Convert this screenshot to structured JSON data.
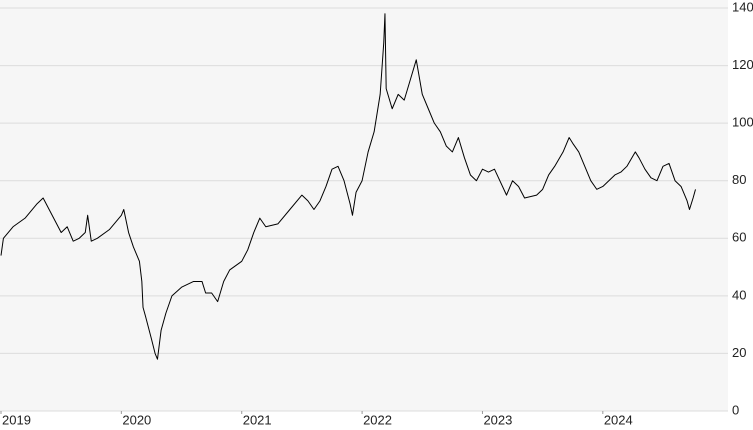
{
  "chart_data": {
    "type": "line",
    "x": [
      2019.0,
      2019.02,
      2019.1,
      2019.2,
      2019.3,
      2019.35,
      2019.4,
      2019.45,
      2019.5,
      2019.55,
      2019.6,
      2019.65,
      2019.7,
      2019.72,
      2019.75,
      2019.8,
      2019.9,
      2020.0,
      2020.02,
      2020.06,
      2020.1,
      2020.15,
      2020.17,
      2020.18,
      2020.2,
      2020.25,
      2020.28,
      2020.3,
      2020.33,
      2020.37,
      2020.42,
      2020.5,
      2020.6,
      2020.67,
      2020.7,
      2020.75,
      2020.8,
      2020.85,
      2020.9,
      2021.0,
      2021.05,
      2021.1,
      2021.15,
      2021.2,
      2021.3,
      2021.4,
      2021.5,
      2021.55,
      2021.6,
      2021.65,
      2021.7,
      2021.75,
      2021.8,
      2021.85,
      2021.9,
      2021.92,
      2021.95,
      2022.0,
      2022.05,
      2022.1,
      2022.15,
      2022.18,
      2022.19,
      2022.2,
      2022.25,
      2022.3,
      2022.35,
      2022.4,
      2022.45,
      2022.5,
      2022.55,
      2022.6,
      2022.65,
      2022.7,
      2022.75,
      2022.8,
      2022.85,
      2022.9,
      2022.95,
      2023.0,
      2023.05,
      2023.1,
      2023.2,
      2023.25,
      2023.3,
      2023.35,
      2023.45,
      2023.5,
      2023.55,
      2023.6,
      2023.67,
      2023.72,
      2023.75,
      2023.8,
      2023.85,
      2023.9,
      2023.95,
      2024.0,
      2024.05,
      2024.1,
      2024.15,
      2024.2,
      2024.27,
      2024.3,
      2024.35,
      2024.4,
      2024.45,
      2024.5,
      2024.55,
      2024.6,
      2024.65,
      2024.7,
      2024.72,
      2024.75,
      2024.77
    ],
    "series": [
      {
        "color": "#000000",
        "values": [
          54,
          60,
          64,
          67,
          72,
          74,
          70,
          66,
          62,
          64,
          59,
          60,
          62,
          68,
          59,
          60,
          63,
          68,
          70,
          62,
          57,
          52,
          45,
          36,
          33,
          25,
          20,
          18,
          28,
          34,
          40,
          43,
          45,
          45,
          41,
          41,
          38,
          45,
          49,
          52,
          56,
          62,
          67,
          64,
          65,
          70,
          75,
          73,
          70,
          73,
          78,
          84,
          85,
          80,
          72,
          68,
          76,
          80,
          90,
          97,
          110,
          128,
          138,
          112,
          105,
          110,
          108,
          115,
          122,
          110,
          105,
          100,
          97,
          92,
          90,
          95,
          88,
          82,
          80,
          84,
          83,
          84,
          75,
          80,
          78,
          74,
          75,
          77,
          82,
          85,
          90,
          95,
          93,
          90,
          85,
          80,
          77,
          78,
          80,
          82,
          83,
          85,
          90,
          88,
          84,
          81,
          80,
          85,
          86,
          80,
          78,
          73,
          70,
          74,
          77
        ]
      }
    ],
    "xlim": [
      2019,
      2025.04
    ],
    "xticks": [
      2019,
      2020,
      2021,
      2022,
      2023,
      2024
    ],
    "ylim": [
      0,
      140
    ],
    "yticks": [
      0,
      20,
      40,
      60,
      80,
      100,
      120,
      140
    ],
    "grid": true
  }
}
